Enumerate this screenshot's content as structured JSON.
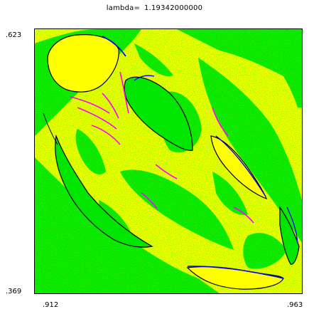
{
  "title": {
    "label": "lambda=",
    "value": "1.19342000000"
  },
  "axes": {
    "y_top": ".623",
    "y_bottom": ".369",
    "x_left": ".912",
    "x_right": ".963"
  },
  "colors": {
    "yellow": "#ffff00",
    "green": "#00e600",
    "magenta": "#ff00ff",
    "blue": "#0000ff",
    "black": "#000000"
  }
}
